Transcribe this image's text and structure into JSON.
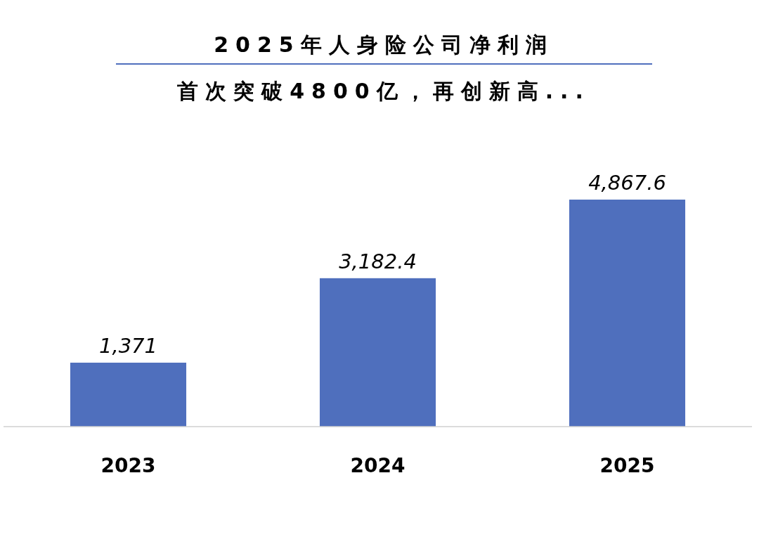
{
  "chart_data": {
    "type": "bar",
    "title": "2025年人身险公司净利润",
    "subtitle": "首次突破4800亿，再创新高...",
    "categories": [
      "2023",
      "2024",
      "2025"
    ],
    "values": [
      1371,
      3182.4,
      4867.6
    ],
    "value_labels": [
      "1,371",
      "3,182.4",
      "4,867.6"
    ],
    "color": "#4f6fbd"
  }
}
